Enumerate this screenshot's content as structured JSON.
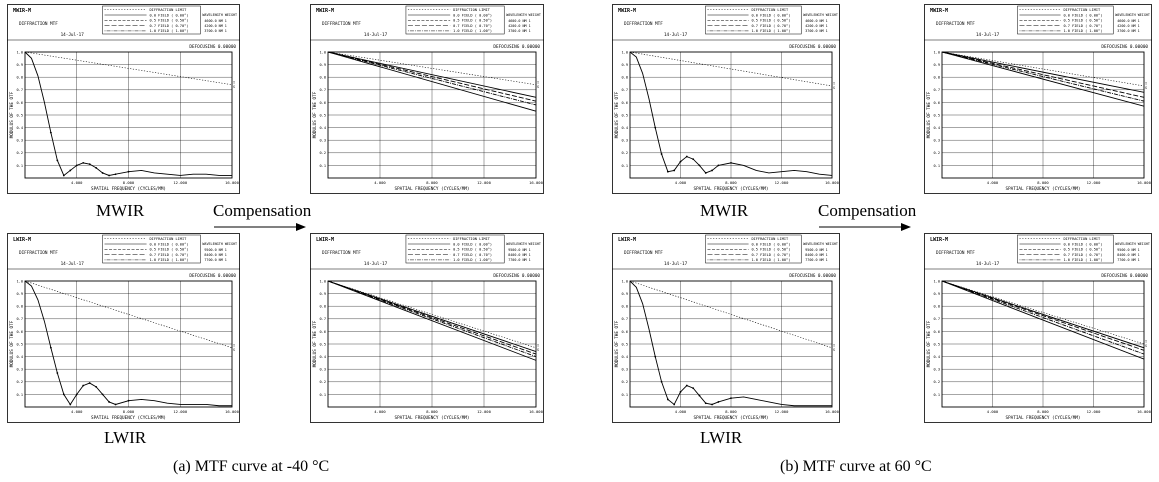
{
  "figure": {
    "caption_a": "(a) MTF curve at -40 °C",
    "caption_b": "(b) MTF curve at 60 °C",
    "labels": {
      "mwir": "MWIR",
      "lwir": "LWIR",
      "compensation": "Compensation"
    }
  },
  "colors": {
    "ink": "#000000",
    "frame": "#000000",
    "grid": "#000000",
    "background": "#ffffff"
  },
  "chart_data": [
    {
      "id": "a-mwir-before",
      "type": "line",
      "title": "MWIR-M",
      "subtitle": "DIFFRACTION MTF",
      "date": "14-Jul-17",
      "wl_header": "WAVELENGTH  WEIGHT",
      "wavelengths": [
        "4600.0 NM  1",
        "4200.0 NM  1",
        "3700.0 NM  1"
      ],
      "legend": [
        "DIFFRACTION LIMIT",
        "0.0 FIELD ( 0.00°)",
        "0.5 FIELD ( 0.50°)",
        "0.7 FIELD ( 0.70°)",
        "1.0 FIELD ( 1.00°)"
      ],
      "defocus": "DEFOCUSING 0.00000",
      "xlabel": "SPATIAL FREQUENCY (CYCLES/MM)",
      "ylabel": "MODULUS OF THE OTF",
      "xticks": [
        "",
        "4.000",
        "8.000",
        "12.000",
        "16.000"
      ],
      "xlim": [
        0,
        16
      ],
      "yticks": [
        "0.1",
        "0.2",
        "0.3",
        "0.4",
        "0.5",
        "0.6",
        "0.7",
        "0.8",
        "0.9",
        "1.0"
      ],
      "ylim": [
        0,
        1
      ],
      "ts_marks": [
        "T",
        "S"
      ],
      "series": [
        {
          "role": "limit",
          "x": [
            0,
            16
          ],
          "y": [
            1.0,
            0.74
          ]
        },
        {
          "role": "field",
          "x": [
            0,
            0.5,
            1,
            1.5,
            2,
            2.5,
            3,
            3.5,
            4,
            4.5,
            5,
            5.5,
            6,
            6.5,
            7,
            8,
            9,
            10,
            11,
            12,
            13,
            14,
            15,
            16
          ],
          "y": [
            1.0,
            0.95,
            0.81,
            0.6,
            0.36,
            0.14,
            0.02,
            0.06,
            0.1,
            0.12,
            0.11,
            0.08,
            0.04,
            0.02,
            0.03,
            0.05,
            0.06,
            0.04,
            0.03,
            0.02,
            0.03,
            0.03,
            0.02,
            0.02
          ]
        }
      ]
    },
    {
      "id": "a-mwir-after",
      "type": "line",
      "title": "MWIR-M",
      "subtitle": "DIFFRACTION MTF",
      "date": "14-Jul-17",
      "wl_header": "WAVELENGTH  WEIGHT",
      "wavelengths": [
        "4600.0 NM  1",
        "4200.0 NM  1",
        "3700.0 NM  1"
      ],
      "legend": [
        "DIFFRACTION LIMIT",
        "0.0 FIELD ( 0.00°)",
        "0.5 FIELD ( 0.50°)",
        "0.7 FIELD ( 0.70°)",
        "1.0 FIELD ( 1.00°)"
      ],
      "defocus": "DEFOCUSING 0.00000",
      "xlabel": "SPATIAL FREQUENCY (CYCLES/MM)",
      "ylabel": "MODULUS OF THE OTF",
      "xticks": [
        "",
        "4.000",
        "8.000",
        "12.000",
        "16.000"
      ],
      "xlim": [
        0,
        16
      ],
      "yticks": [
        "0.1",
        "0.2",
        "0.3",
        "0.4",
        "0.5",
        "0.6",
        "0.7",
        "0.8",
        "0.9",
        "1.0"
      ],
      "ylim": [
        0,
        1
      ],
      "ts_marks": [
        "T",
        "S"
      ],
      "series": [
        {
          "role": "limit",
          "x": [
            0,
            16
          ],
          "y": [
            1.0,
            0.74
          ]
        },
        {
          "role": "field",
          "x": [
            0,
            16
          ],
          "y": [
            1.0,
            0.64
          ]
        },
        {
          "role": "field",
          "x": [
            0,
            16
          ],
          "y": [
            1.0,
            0.61
          ]
        },
        {
          "role": "field",
          "x": [
            0,
            16
          ],
          "y": [
            1.0,
            0.58
          ]
        },
        {
          "role": "field",
          "x": [
            0,
            16
          ],
          "y": [
            1.0,
            0.53
          ]
        }
      ]
    },
    {
      "id": "a-lwir-before",
      "type": "line",
      "title": "LWIR-M",
      "subtitle": "DIFFRACTION MTF",
      "date": "14-Jul-17",
      "wl_header": "WAVELENGTH  WEIGHT",
      "wavelengths": [
        "9500.0 NM  1",
        "8400.0 NM  1",
        "7700.0 NM  1"
      ],
      "legend": [
        "DIFFRACTION LIMIT",
        "0.0 FIELD ( 0.00°)",
        "0.5 FIELD ( 0.50°)",
        "0.7 FIELD ( 0.70°)",
        "1.0 FIELD ( 1.00°)"
      ],
      "defocus": "DEFOCUSING 0.00000",
      "xlabel": "SPATIAL FREQUENCY (CYCLES/MM)",
      "ylabel": "MODULUS OF THE OTF",
      "xticks": [
        "",
        "4.000",
        "8.000",
        "12.000",
        "16.000"
      ],
      "xlim": [
        0,
        16
      ],
      "yticks": [
        "0.1",
        "0.2",
        "0.3",
        "0.4",
        "0.5",
        "0.6",
        "0.7",
        "0.8",
        "0.9",
        "1.0"
      ],
      "ylim": [
        0,
        1
      ],
      "ts_marks": [
        "T",
        "S"
      ],
      "series": [
        {
          "role": "limit",
          "x": [
            0,
            16
          ],
          "y": [
            1.0,
            0.47
          ]
        },
        {
          "role": "field",
          "x": [
            0,
            0.5,
            1,
            1.5,
            2,
            2.5,
            3,
            3.5,
            4,
            4.5,
            5,
            5.5,
            6,
            6.5,
            7,
            8,
            9,
            10,
            11,
            12,
            13,
            14,
            15,
            16
          ],
          "y": [
            1.0,
            0.96,
            0.85,
            0.68,
            0.47,
            0.27,
            0.1,
            0.02,
            0.1,
            0.17,
            0.19,
            0.16,
            0.1,
            0.04,
            0.02,
            0.05,
            0.06,
            0.05,
            0.03,
            0.02,
            0.02,
            0.02,
            0.01,
            0.01
          ]
        }
      ]
    },
    {
      "id": "a-lwir-after",
      "type": "line",
      "title": "LWIR-M",
      "subtitle": "DIFFRACTION MTF",
      "date": "14-Jul-17",
      "wl_header": "WAVELENGTH  WEIGHT",
      "wavelengths": [
        "9500.0 NM  1",
        "8400.0 NM  1",
        "7700.0 NM  1"
      ],
      "legend": [
        "DIFFRACTION LIMIT",
        "0.0 FIELD ( 0.00°)",
        "0.5 FIELD ( 0.50°)",
        "0.7 FIELD ( 0.70°)",
        "1.0 FIELD ( 1.00°)"
      ],
      "defocus": "DEFOCUSING 0.00000",
      "xlabel": "SPATIAL FREQUENCY (CYCLES/MM)",
      "ylabel": "MODULUS OF THE OTF",
      "xticks": [
        "",
        "4.000",
        "8.000",
        "12.000",
        "16.000"
      ],
      "xlim": [
        0,
        16
      ],
      "yticks": [
        "0.1",
        "0.2",
        "0.3",
        "0.4",
        "0.5",
        "0.6",
        "0.7",
        "0.8",
        "0.9",
        "1.0"
      ],
      "ylim": [
        0,
        1
      ],
      "ts_marks": [
        "T",
        "S"
      ],
      "series": [
        {
          "role": "limit",
          "x": [
            0,
            16
          ],
          "y": [
            1.0,
            0.47
          ]
        },
        {
          "role": "field",
          "x": [
            0,
            16
          ],
          "y": [
            1.0,
            0.44
          ]
        },
        {
          "role": "field",
          "x": [
            0,
            16
          ],
          "y": [
            1.0,
            0.42
          ]
        },
        {
          "role": "field",
          "x": [
            0,
            16
          ],
          "y": [
            1.0,
            0.4
          ]
        },
        {
          "role": "field",
          "x": [
            0,
            16
          ],
          "y": [
            1.0,
            0.37
          ]
        }
      ]
    },
    {
      "id": "b-mwir-before",
      "type": "line",
      "title": "MWIR-M",
      "subtitle": "DIFFRACTION MTF",
      "date": "14-Jul-17",
      "wl_header": "WAVELENGTH  WEIGHT",
      "wavelengths": [
        "4600.0 NM  1",
        "4200.0 NM  1",
        "3700.0 NM  1"
      ],
      "legend": [
        "DIFFRACTION LIMIT",
        "0.0 FIELD ( 0.00°)",
        "0.5 FIELD ( 0.50°)",
        "0.7 FIELD ( 0.70°)",
        "1.0 FIELD ( 1.00°)"
      ],
      "defocus": "DEFOCUSING 0.00000",
      "xlabel": "SPATIAL FREQUENCY (CYCLES/MM)",
      "ylabel": "MODULUS OF THE OTF",
      "xticks": [
        "",
        "4.000",
        "8.000",
        "12.000",
        "16.000"
      ],
      "xlim": [
        0,
        16
      ],
      "yticks": [
        "0.1",
        "0.2",
        "0.3",
        "0.4",
        "0.5",
        "0.6",
        "0.7",
        "0.8",
        "0.9",
        "1.0"
      ],
      "ylim": [
        0,
        1
      ],
      "ts_marks": [
        "T",
        "S"
      ],
      "series": [
        {
          "role": "limit",
          "x": [
            0,
            16
          ],
          "y": [
            1.0,
            0.73
          ]
        },
        {
          "role": "field",
          "x": [
            0,
            0.5,
            1,
            1.5,
            2,
            2.5,
            3,
            3.5,
            4,
            4.5,
            5,
            5.5,
            6,
            6.5,
            7,
            8,
            9,
            10,
            11,
            12,
            13,
            14,
            15,
            16
          ],
          "y": [
            1.0,
            0.96,
            0.83,
            0.63,
            0.4,
            0.19,
            0.05,
            0.06,
            0.13,
            0.17,
            0.15,
            0.1,
            0.04,
            0.06,
            0.1,
            0.12,
            0.1,
            0.06,
            0.04,
            0.05,
            0.06,
            0.05,
            0.03,
            0.02
          ]
        }
      ]
    },
    {
      "id": "b-mwir-after",
      "type": "line",
      "title": "MWIR-M",
      "subtitle": "DIFFRACTION MTF",
      "date": "14-Jul-17",
      "wl_header": "WAVELENGTH  WEIGHT",
      "wavelengths": [
        "4600.0 NM  1",
        "4200.0 NM  1",
        "3700.0 NM  1"
      ],
      "legend": [
        "DIFFRACTION LIMIT",
        "0.0 FIELD ( 0.00°)",
        "0.5 FIELD ( 0.50°)",
        "0.7 FIELD ( 0.70°)",
        "1.0 FIELD ( 1.00°)"
      ],
      "defocus": "DEFOCUSING 0.00000",
      "xlabel": "SPATIAL FREQUENCY (CYCLES/MM)",
      "ylabel": "MODULUS OF THE OTF",
      "xticks": [
        "",
        "4.000",
        "8.000",
        "12.000",
        "16.000"
      ],
      "xlim": [
        0,
        16
      ],
      "yticks": [
        "0.1",
        "0.2",
        "0.3",
        "0.4",
        "0.5",
        "0.6",
        "0.7",
        "0.8",
        "0.9",
        "1.0"
      ],
      "ylim": [
        0,
        1
      ],
      "ts_marks": [
        "T",
        "S"
      ],
      "series": [
        {
          "role": "limit",
          "x": [
            0,
            16
          ],
          "y": [
            1.0,
            0.73
          ]
        },
        {
          "role": "field",
          "x": [
            0,
            16
          ],
          "y": [
            1.0,
            0.68
          ]
        },
        {
          "role": "field",
          "x": [
            0,
            16
          ],
          "y": [
            1.0,
            0.64
          ]
        },
        {
          "role": "field",
          "x": [
            0,
            16
          ],
          "y": [
            1.0,
            0.61
          ]
        },
        {
          "role": "field",
          "x": [
            0,
            16
          ],
          "y": [
            1.0,
            0.57
          ]
        }
      ]
    },
    {
      "id": "b-lwir-before",
      "type": "line",
      "title": "LWIR-M",
      "subtitle": "DIFFRACTION MTF",
      "date": "14-Jul-17",
      "wl_header": "WAVELENGTH  WEIGHT",
      "wavelengths": [
        "9500.0 NM  1",
        "8400.0 NM  1",
        "7700.0 NM  1"
      ],
      "legend": [
        "DIFFRACTION LIMIT",
        "0.0 FIELD ( 0.00°)",
        "0.5 FIELD ( 0.50°)",
        "0.7 FIELD ( 0.70°)",
        "1.0 FIELD ( 1.00°)"
      ],
      "defocus": "DEFOCUSING 0.00000",
      "xlabel": "SPATIAL FREQUENCY (CYCLES/MM)",
      "ylabel": "MODULUS OF THE OTF",
      "xticks": [
        "",
        "4.000",
        "8.000",
        "12.000",
        "16.000"
      ],
      "xlim": [
        0,
        16
      ],
      "yticks": [
        "0.1",
        "0.2",
        "0.3",
        "0.4",
        "0.5",
        "0.6",
        "0.7",
        "0.8",
        "0.9",
        "1.0"
      ],
      "ylim": [
        0,
        1
      ],
      "ts_marks": [
        "T",
        "S"
      ],
      "series": [
        {
          "role": "limit",
          "x": [
            0,
            16
          ],
          "y": [
            1.0,
            0.47
          ]
        },
        {
          "role": "field",
          "x": [
            0,
            0.5,
            1,
            1.5,
            2,
            2.5,
            3,
            3.5,
            4,
            4.5,
            5,
            5.5,
            6,
            6.5,
            7,
            8,
            9,
            10,
            11,
            12,
            13,
            14,
            15,
            16
          ],
          "y": [
            1.0,
            0.95,
            0.82,
            0.62,
            0.4,
            0.2,
            0.06,
            0.02,
            0.12,
            0.17,
            0.15,
            0.09,
            0.03,
            0.02,
            0.04,
            0.07,
            0.08,
            0.06,
            0.04,
            0.02,
            0.01,
            0.01,
            0.01,
            0.01
          ]
        }
      ]
    },
    {
      "id": "b-lwir-after",
      "type": "line",
      "title": "LWIR-M",
      "subtitle": "DIFFRACTION MTF",
      "date": "14-Jul-17",
      "wl_header": "WAVELENGTH  WEIGHT",
      "wavelengths": [
        "9500.0 NM  1",
        "8400.0 NM  1",
        "7700.0 NM  1"
      ],
      "legend": [
        "DIFFRACTION LIMIT",
        "0.0 FIELD ( 0.00°)",
        "0.5 FIELD ( 0.50°)",
        "0.7 FIELD ( 0.70°)",
        "1.0 FIELD ( 1.00°)"
      ],
      "defocus": "DEFOCUSING 0.00000",
      "xlabel": "SPATIAL FREQUENCY (CYCLES/MM)",
      "ylabel": "MODULUS OF THE OTF",
      "xticks": [
        "",
        "4.000",
        "8.000",
        "12.000",
        "16.000"
      ],
      "xlim": [
        0,
        16
      ],
      "yticks": [
        "0.1",
        "0.2",
        "0.3",
        "0.4",
        "0.5",
        "0.6",
        "0.7",
        "0.8",
        "0.9",
        "1.0"
      ],
      "ylim": [
        0,
        1
      ],
      "ts_marks": [
        "T",
        "S"
      ],
      "series": [
        {
          "role": "limit",
          "x": [
            0,
            16
          ],
          "y": [
            1.0,
            0.5
          ]
        },
        {
          "role": "field",
          "x": [
            0,
            16
          ],
          "y": [
            1.0,
            0.47
          ]
        },
        {
          "role": "field",
          "x": [
            0,
            16
          ],
          "y": [
            1.0,
            0.45
          ]
        },
        {
          "role": "field",
          "x": [
            0,
            16
          ],
          "y": [
            1.0,
            0.42
          ]
        },
        {
          "role": "field",
          "x": [
            0,
            16
          ],
          "y": [
            1.0,
            0.38
          ]
        }
      ]
    }
  ]
}
